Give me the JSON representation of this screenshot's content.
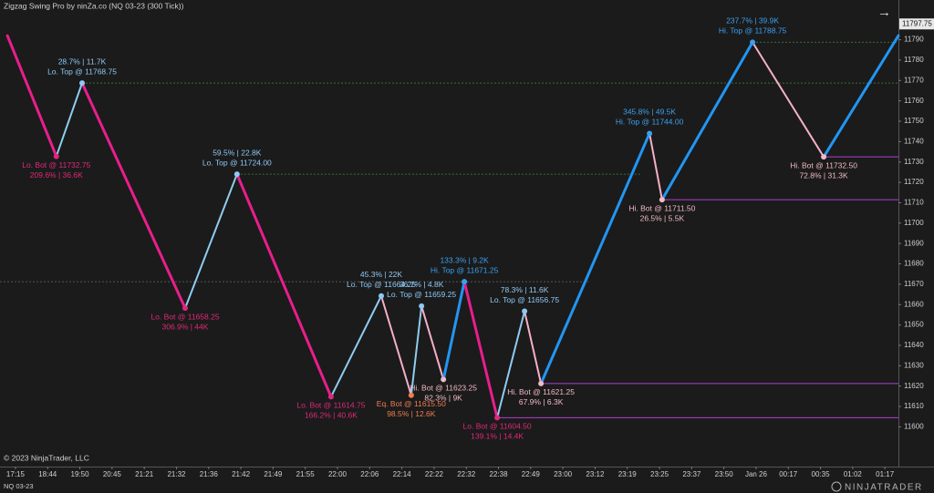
{
  "chart_data": {
    "type": "zigzag",
    "title": "Zigzag Swing Pro by ninZa.co (NQ 03-23 (300 Tick))",
    "copyright": "© 2023 NinjaTrader, LLC",
    "instrument": "NQ 03-23",
    "brand": "NINJATRADER",
    "last_price": 11797.75,
    "categories": [
      "17:15",
      "18:44",
      "19:50",
      "20:45",
      "21:21",
      "21:32",
      "21:36",
      "21:42",
      "21:49",
      "21:55",
      "22:00",
      "22:06",
      "22:14",
      "22:22",
      "22:32",
      "22:38",
      "22:49",
      "23:00",
      "23:12",
      "23:19",
      "23:25",
      "23:37",
      "23:50",
      "Jan 26",
      "00:17",
      "00:35",
      "01:02",
      "01:17"
    ],
    "xlim": [
      -0.48,
      27.42
    ],
    "ylim": [
      11580.5,
      11809.5
    ],
    "yticks": [
      11600,
      11610,
      11620,
      11630,
      11640,
      11650,
      11660,
      11670,
      11680,
      11690,
      11700,
      11710,
      11720,
      11730,
      11740,
      11750,
      11760,
      11770,
      11780,
      11790
    ],
    "swings": [
      {
        "x": -0.25,
        "price": 11792,
        "leg_color": "#e91e8c"
      },
      {
        "x": 1.27,
        "price": 11732.75,
        "label": "Lo. Bot @ 11732.75",
        "stats": "209.6%  |  36.6K",
        "side": "below",
        "color": "#e0287a",
        "leg_color": "#8ecdf0"
      },
      {
        "x": 2.07,
        "price": 11768.75,
        "label": "Lo. Top @ 11768.75",
        "stats": "28.7%  |  11.7K",
        "side": "above",
        "color": "#8ec9f5",
        "leg_color": "#e91e8c"
      },
      {
        "x": 5.27,
        "price": 11658.25,
        "label": "Lo. Bot @ 11658.25",
        "stats": "306.9%  |  44K",
        "side": "below",
        "color": "#e0287a",
        "leg_color": "#8ecdf0"
      },
      {
        "x": 6.88,
        "price": 11724.0,
        "label": "Lo. Top @ 11724.00",
        "stats": "59.5%  |  22.8K",
        "side": "above",
        "color": "#8ec9f5",
        "leg_color": "#e91e8c"
      },
      {
        "x": 9.8,
        "price": 11614.75,
        "label": "Lo. Bot @ 11614.75",
        "stats": "166.2%  |  40.6K",
        "side": "below",
        "color": "#e0287a",
        "leg_color": "#8ecdf0"
      },
      {
        "x": 11.36,
        "price": 11664.25,
        "label": "Lo. Top @ 11664.25",
        "stats": "45.3%  |  22K",
        "side": "above",
        "color": "#8ec9f5",
        "leg_color": "#f6b0c8"
      },
      {
        "x": 12.29,
        "price": 11615.5,
        "label": "Eq. Bot @ 11615.50",
        "stats": "98.5%  |  12.6K",
        "side": "below",
        "color": "#f07d50",
        "leg_color": "#8ecdf0"
      },
      {
        "x": 12.61,
        "price": 11659.25,
        "label": "Lo. Top @ 11659.25",
        "stats": "36.7%  |  4.8K",
        "side": "above",
        "color": "#8ec9f5",
        "leg_color": "#f6b0c8"
      },
      {
        "x": 13.29,
        "price": 11623.25,
        "label": "Hi. Bot @ 11623.25",
        "stats": "82.3%  |  9K",
        "side": "below",
        "color": "#f2b9c6",
        "leg_color": "#2196f3"
      },
      {
        "x": 13.94,
        "price": 11671.25,
        "label": "Hi. Top @ 11671.25",
        "stats": "133.3%  |  9.2K",
        "side": "above",
        "color": "#3aa0f0",
        "leg_color": "#e91e8c"
      },
      {
        "x": 14.96,
        "price": 11604.5,
        "label": "Lo. Bot @ 11604.50",
        "stats": "139.1%  |  14.4K",
        "side": "below",
        "color": "#e0287a",
        "leg_color": "#8ecdf0"
      },
      {
        "x": 15.81,
        "price": 11656.75,
        "label": "Lo. Top @ 11656.75",
        "stats": "78.3%  |  11.6K",
        "side": "above",
        "color": "#8ec9f5",
        "leg_color": "#f6b0c8"
      },
      {
        "x": 16.32,
        "price": 11621.25,
        "label": "Hi. Bot @ 11621.25",
        "stats": "67.9%  |  6.3K",
        "side": "below",
        "color": "#f2b9c6",
        "leg_color": "#2196f3"
      },
      {
        "x": 19.69,
        "price": 11744.0,
        "label": "Hi. Top @ 11744.00",
        "stats": "345.8%  |  49.5K",
        "side": "above",
        "color": "#3aa0f0",
        "leg_color": "#f6b0c8"
      },
      {
        "x": 20.08,
        "price": 11711.5,
        "label": "Hi. Bot @ 11711.50",
        "stats": "26.5%  |  5.5K",
        "side": "below",
        "color": "#f2b9c6",
        "leg_color": "#2196f3"
      },
      {
        "x": 22.89,
        "price": 11788.75,
        "label": "Hi. Top @ 11788.75",
        "stats": "237.7%  |  39.9K",
        "side": "above",
        "color": "#3aa0f0",
        "leg_color": "#f6b0c8"
      },
      {
        "x": 25.1,
        "price": 11732.5,
        "label": "Hi. Bot @ 11732.50",
        "stats": "72.8%  |  31.3K",
        "side": "below",
        "color": "#f2b9c6",
        "leg_color": "#2196f3"
      },
      {
        "x": 27.42,
        "price": 11792
      }
    ],
    "levels": [
      {
        "price": 11768.75,
        "from": 2.07,
        "to": 27.42,
        "color": "#3c6e3c",
        "dashed": true
      },
      {
        "price": 11724.0,
        "from": 6.88,
        "to": 19.4,
        "color": "#3c6e3c",
        "dashed": true
      },
      {
        "price": 11671.25,
        "from": -0.48,
        "to": 17.8,
        "color": "#555555",
        "dashed": true
      },
      {
        "price": 11788.75,
        "from": 22.89,
        "to": 27.42,
        "color": "#3c6e3c",
        "dashed": true
      },
      {
        "price": 11732.5,
        "from": 25.1,
        "to": 27.42,
        "color": "#b040d0",
        "dashed": false
      },
      {
        "price": 11711.5,
        "from": 20.08,
        "to": 27.42,
        "color": "#b040d0",
        "dashed": false
      },
      {
        "price": 11621.25,
        "from": 16.32,
        "to": 27.42,
        "color": "#b040d0",
        "dashed": false
      },
      {
        "price": 11604.5,
        "from": 14.96,
        "to": 27.42,
        "color": "#b040d0",
        "dashed": false
      }
    ]
  }
}
